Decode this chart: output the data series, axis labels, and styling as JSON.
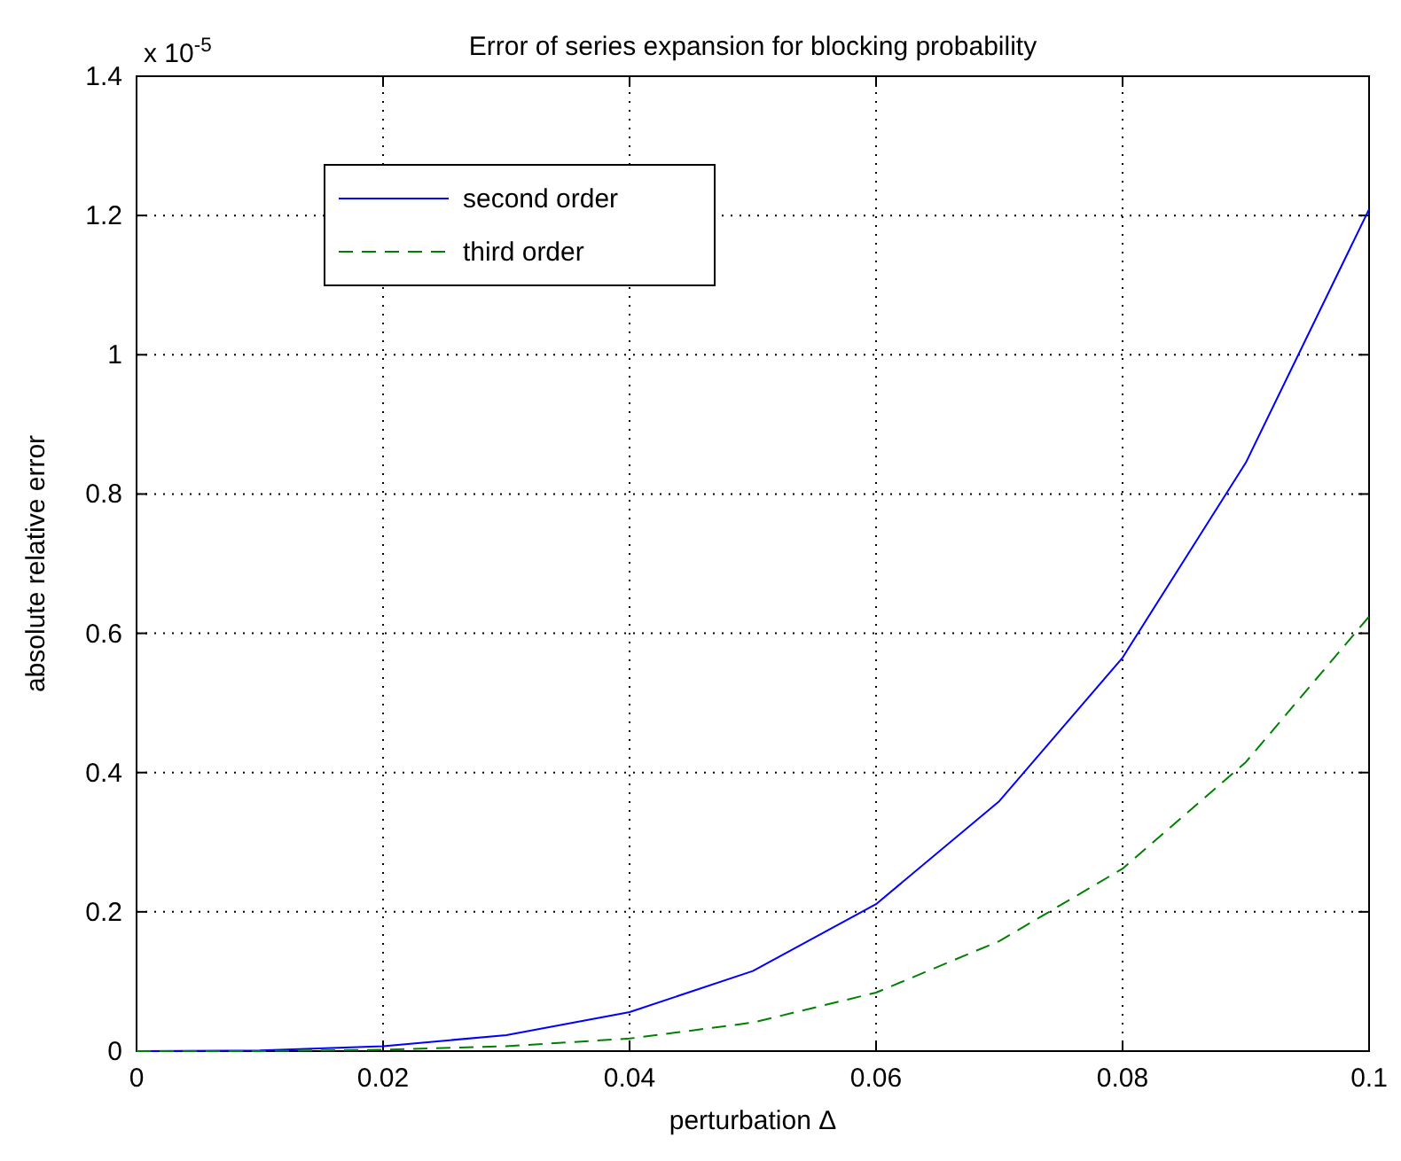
{
  "chart_data": {
    "type": "line",
    "title": "Error of series expansion for blocking probability",
    "xlabel": "perturbation Δ",
    "ylabel": "absolute relative error",
    "annotations": [
      "x 10$^{-5}$"
    ],
    "x": [
      0,
      0.01,
      0.02,
      0.03,
      0.04,
      0.05,
      0.06,
      0.07,
      0.08,
      0.09,
      0.1
    ],
    "series": [
      {
        "name": "second order",
        "color": "#0000ff",
        "line_style": "solid",
        "values": [
          0,
          0.001,
          0.007,
          0.023,
          0.056,
          0.115,
          0.211,
          0.359,
          0.565,
          0.845,
          1.209
        ]
      },
      {
        "name": "third order",
        "color": "#008000",
        "line_style": "dashed",
        "values": [
          0,
          0,
          0.002,
          0.007,
          0.018,
          0.041,
          0.084,
          0.158,
          0.262,
          0.415,
          0.624
        ]
      }
    ],
    "xlim": [
      0,
      0.1
    ],
    "xticks": [
      0,
      0.02,
      0.04,
      0.06,
      0.08,
      0.1
    ],
    "ylim": [
      0,
      1.4
    ],
    "yticks": [
      0,
      0.2,
      0.4,
      0.6,
      0.8,
      1,
      1.2,
      1.4
    ],
    "grid": true,
    "legend": "top left",
    "marker": "none"
  }
}
